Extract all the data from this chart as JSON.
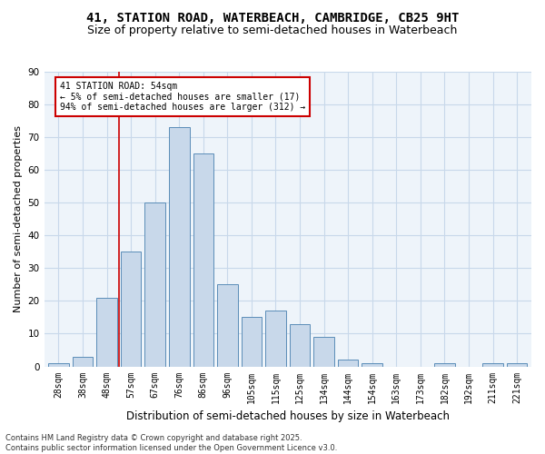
{
  "title_line1": "41, STATION ROAD, WATERBEACH, CAMBRIDGE, CB25 9HT",
  "title_line2": "Size of property relative to semi-detached houses in Waterbeach",
  "xlabel": "Distribution of semi-detached houses by size in Waterbeach",
  "ylabel": "Number of semi-detached properties",
  "categories": [
    "28sqm",
    "38sqm",
    "48sqm",
    "57sqm",
    "67sqm",
    "76sqm",
    "86sqm",
    "96sqm",
    "105sqm",
    "115sqm",
    "125sqm",
    "134sqm",
    "144sqm",
    "154sqm",
    "163sqm",
    "173sqm",
    "182sqm",
    "192sqm",
    "211sqm",
    "221sqm"
  ],
  "values": [
    1,
    3,
    21,
    35,
    50,
    73,
    65,
    25,
    15,
    17,
    13,
    9,
    2,
    1,
    0,
    0,
    1,
    0,
    1,
    1
  ],
  "bar_color": "#c8d8ea",
  "bar_edge_color": "#5b8db8",
  "vline_x_index": 2.5,
  "vline_color": "#cc0000",
  "annotation_text": "41 STATION ROAD: 54sqm\n← 5% of semi-detached houses are smaller (17)\n94% of semi-detached houses are larger (312) →",
  "annotation_box_color": "#cc0000",
  "annotation_fill": "#ffffff",
  "ylim": [
    0,
    90
  ],
  "yticks": [
    0,
    10,
    20,
    30,
    40,
    50,
    60,
    70,
    80,
    90
  ],
  "grid_color": "#c8d8ea",
  "background_color": "#eef4fa",
  "footer_line1": "Contains HM Land Registry data © Crown copyright and database right 2025.",
  "footer_line2": "Contains public sector information licensed under the Open Government Licence v3.0.",
  "title_fontsize": 10,
  "subtitle_fontsize": 9,
  "axis_label_fontsize": 8,
  "tick_fontsize": 7,
  "footer_fontsize": 6,
  "bar_width": 0.85
}
